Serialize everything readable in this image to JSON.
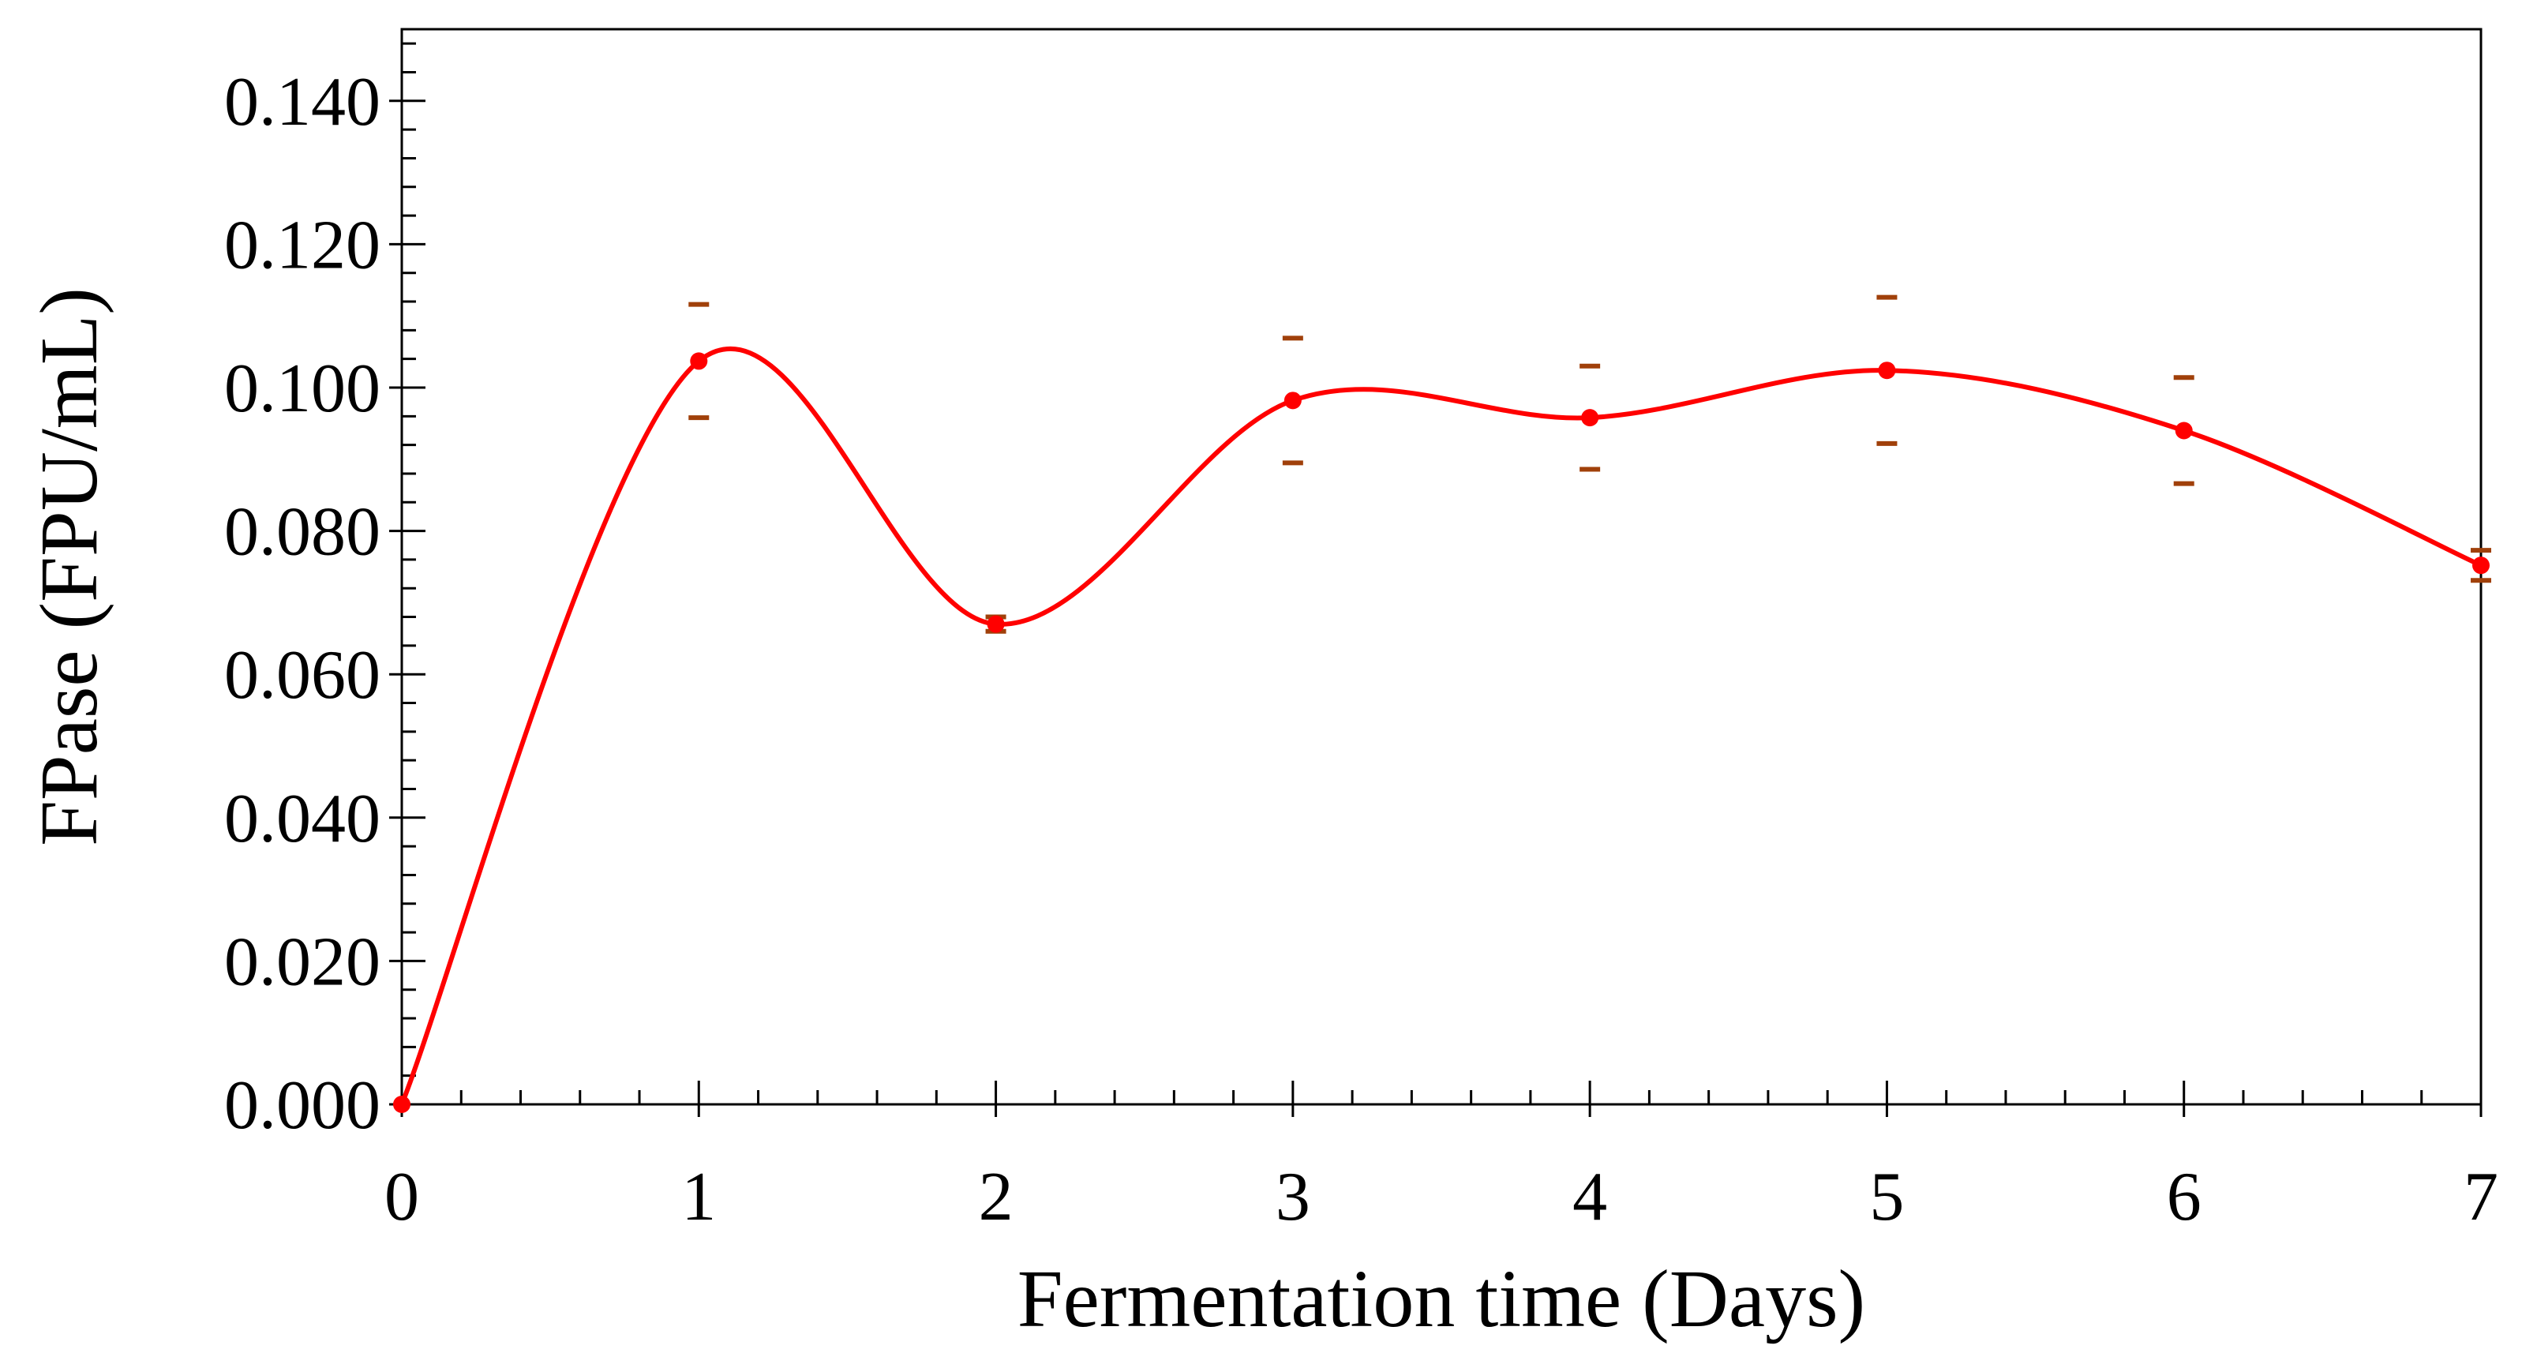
{
  "chart_data": {
    "type": "line",
    "title": "",
    "xlabel": "Fermentation time (Days)",
    "ylabel": "FPase (FPU/mL)",
    "xlim": [
      0,
      7
    ],
    "ylim": [
      0,
      0.15
    ],
    "grid": false,
    "legend": "none",
    "smoothed_line": true,
    "x_ticks": [
      0,
      1,
      2,
      3,
      4,
      5,
      6,
      7
    ],
    "x_tick_labels": [
      "0",
      "1",
      "2",
      "3",
      "4",
      "5",
      "6",
      "7"
    ],
    "x_minor_step": 0.2,
    "y_ticks": [
      0,
      0.02,
      0.04,
      0.06,
      0.08,
      0.1,
      0.12,
      0.14
    ],
    "y_tick_labels": [
      "0.000",
      "0.020",
      "0.040",
      "0.060",
      "0.080",
      "0.100",
      "0.120",
      "0.140"
    ],
    "y_minor_step": 0.004,
    "series": [
      {
        "name": "FPase",
        "color": "#ff0000",
        "error_color": "#a0400a",
        "x": [
          0,
          1,
          2,
          3,
          4,
          5,
          6,
          7
        ],
        "y": [
          0.0,
          0.1037,
          0.067,
          0.0982,
          0.0958,
          0.1024,
          0.094,
          0.0752
        ],
        "error": [
          0.0,
          0.0079,
          0.001,
          0.0087,
          0.0072,
          0.0102,
          0.0074,
          0.0021
        ]
      }
    ]
  }
}
